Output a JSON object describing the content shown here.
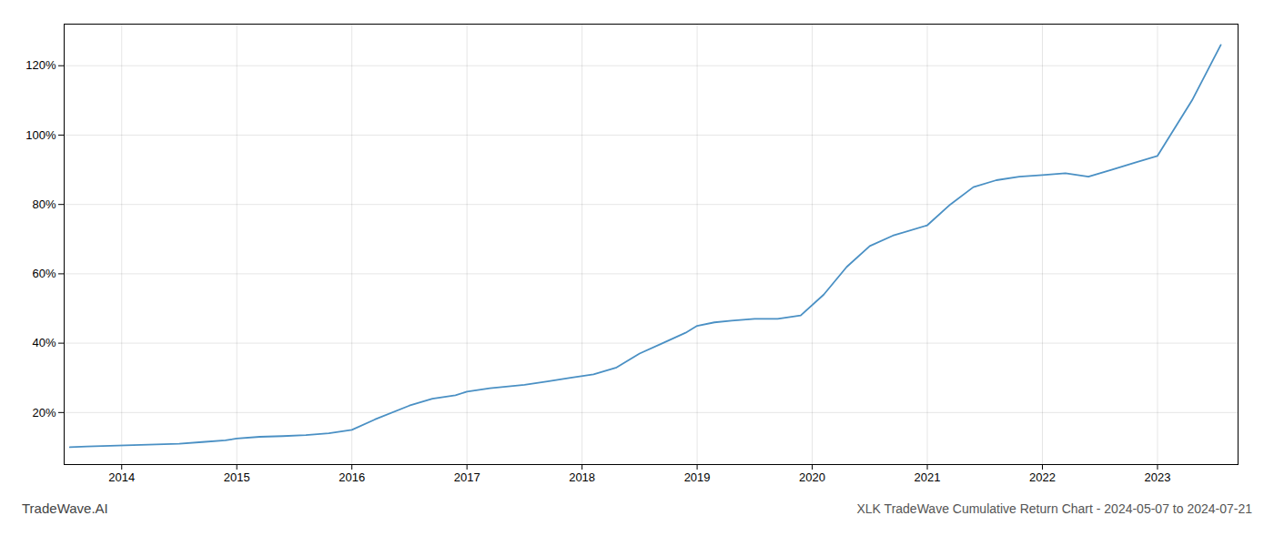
{
  "chart_data": {
    "type": "line",
    "title": "XLK TradeWave Cumulative Return Chart - 2024-05-07 to 2024-07-21",
    "annotations": [
      "TradeWave.AI"
    ],
    "x": [
      2013.55,
      2013.7,
      2013.9,
      2014.1,
      2014.3,
      2014.5,
      2014.7,
      2014.9,
      2015.0,
      2015.2,
      2015.4,
      2015.6,
      2015.8,
      2016.0,
      2016.2,
      2016.5,
      2016.7,
      2016.9,
      2017.0,
      2017.2,
      2017.5,
      2017.7,
      2017.9,
      2018.1,
      2018.3,
      2018.5,
      2018.7,
      2018.9,
      2019.0,
      2019.15,
      2019.3,
      2019.5,
      2019.7,
      2019.9,
      2020.1,
      2020.3,
      2020.5,
      2020.7,
      2021.0,
      2021.2,
      2021.4,
      2021.6,
      2021.8,
      2022.0,
      2022.2,
      2022.4,
      2022.6,
      2022.8,
      2023.0,
      2023.3,
      2023.55
    ],
    "values": [
      10,
      10.2,
      10.4,
      10.6,
      10.8,
      11,
      11.5,
      12,
      12.5,
      13,
      13.2,
      13.5,
      14,
      15,
      18,
      22,
      24,
      25,
      26,
      27,
      28,
      29,
      30,
      31,
      33,
      37,
      40,
      43,
      45,
      46,
      46.5,
      47,
      47,
      48,
      54,
      62,
      68,
      71,
      74,
      80,
      85,
      87,
      88,
      88.5,
      89,
      88,
      90,
      92,
      94,
      110,
      126
    ],
    "color": "#4a90c4",
    "xlim": [
      2013.5,
      2023.7
    ],
    "xticks": [
      2014,
      2015,
      2016,
      2017,
      2018,
      2019,
      2020,
      2021,
      2022,
      2023
    ],
    "ylim": [
      5,
      132
    ],
    "yticks": [
      {
        "value": 20,
        "label": "20%"
      },
      {
        "value": 40,
        "label": "40%"
      },
      {
        "value": 60,
        "label": "60%"
      },
      {
        "value": 80,
        "label": "80%"
      },
      {
        "value": 100,
        "label": "100%"
      },
      {
        "value": 120,
        "label": "120%"
      }
    ],
    "grid": true
  }
}
